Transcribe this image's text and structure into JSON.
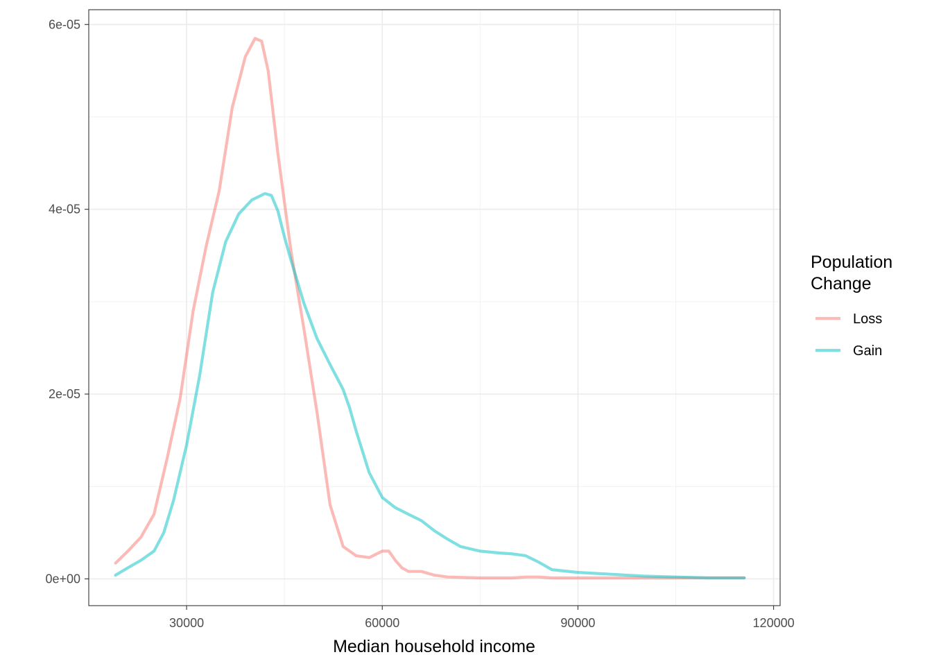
{
  "chart_data": {
    "type": "line",
    "subtype": "density",
    "title": "",
    "xlabel": "Median household income",
    "ylabel": "",
    "xlim": [
      15000,
      121000
    ],
    "ylim": [
      -2.9e-06,
      6.16e-05
    ],
    "x_ticks": [
      {
        "value": 30000,
        "label": "30000"
      },
      {
        "value": 60000,
        "label": "60000"
      },
      {
        "value": 90000,
        "label": "90000"
      },
      {
        "value": 120000,
        "label": "120000"
      }
    ],
    "y_ticks": [
      {
        "value": 0,
        "label": "0e+00"
      },
      {
        "value": 2e-05,
        "label": "2e-05"
      },
      {
        "value": 4e-05,
        "label": "4e-05"
      },
      {
        "value": 6e-05,
        "label": "6e-05"
      }
    ],
    "grid": true,
    "legend": {
      "title_lines": [
        "Population",
        "Change"
      ],
      "placement": "right"
    },
    "series": [
      {
        "name": "Loss",
        "color": "#f8766d",
        "x": [
          19100,
          21000,
          23000,
          25000,
          27000,
          29000,
          31000,
          33000,
          35000,
          37000,
          39000,
          40500,
          41500,
          42500,
          44000,
          46000,
          48000,
          50000,
          52000,
          54000,
          56000,
          58000,
          60000,
          61000,
          62000,
          63000,
          64000,
          66000,
          68000,
          70000,
          75000,
          80000,
          82000,
          84000,
          86000,
          90000,
          100000,
          105000,
          110000,
          115500
        ],
        "y": [
          1.7e-06,
          3e-06,
          4.5e-06,
          7e-06,
          1.3e-05,
          1.95e-05,
          2.9e-05,
          3.6e-05,
          4.2e-05,
          5.1e-05,
          5.65e-05,
          5.85e-05,
          5.82e-05,
          5.5e-05,
          4.6e-05,
          3.55e-05,
          2.7e-05,
          1.8e-05,
          8e-06,
          3.5e-06,
          2.5e-06,
          2.3e-06,
          3e-06,
          3e-06,
          2e-06,
          1.2e-06,
          8e-07,
          8e-07,
          4e-07,
          2e-07,
          1e-07,
          1e-07,
          2e-07,
          2e-07,
          1e-07,
          1e-07,
          1e-07,
          1e-07,
          1e-07,
          1e-07
        ]
      },
      {
        "name": "Gain",
        "color": "#00bfc4",
        "x": [
          19100,
          21000,
          23000,
          25000,
          26500,
          28000,
          30000,
          32000,
          34000,
          36000,
          38000,
          40000,
          42000,
          43000,
          44000,
          45000,
          46000,
          48000,
          50000,
          52000,
          54000,
          55000,
          56000,
          58000,
          60000,
          62000,
          64000,
          66000,
          68000,
          70000,
          72000,
          75000,
          78000,
          80000,
          82000,
          84000,
          86000,
          90000,
          95000,
          100000,
          105000,
          110000,
          115500
        ],
        "y": [
          4e-07,
          1.2e-06,
          2e-06,
          3e-06,
          5e-06,
          8.5e-06,
          1.45e-05,
          2.2e-05,
          3.1e-05,
          3.65e-05,
          3.95e-05,
          4.1e-05,
          4.17e-05,
          4.15e-05,
          3.98e-05,
          3.7e-05,
          3.45e-05,
          2.98e-05,
          2.6e-05,
          2.32e-05,
          2.05e-05,
          1.85e-05,
          1.6e-05,
          1.15e-05,
          8.8e-06,
          7.7e-06,
          7e-06,
          6.3e-06,
          5.2e-06,
          4.3e-06,
          3.5e-06,
          3e-06,
          2.8e-06,
          2.7e-06,
          2.5e-06,
          1.8e-06,
          1e-06,
          7e-07,
          5e-07,
          3e-07,
          2e-07,
          1e-07,
          1e-07
        ]
      }
    ]
  }
}
